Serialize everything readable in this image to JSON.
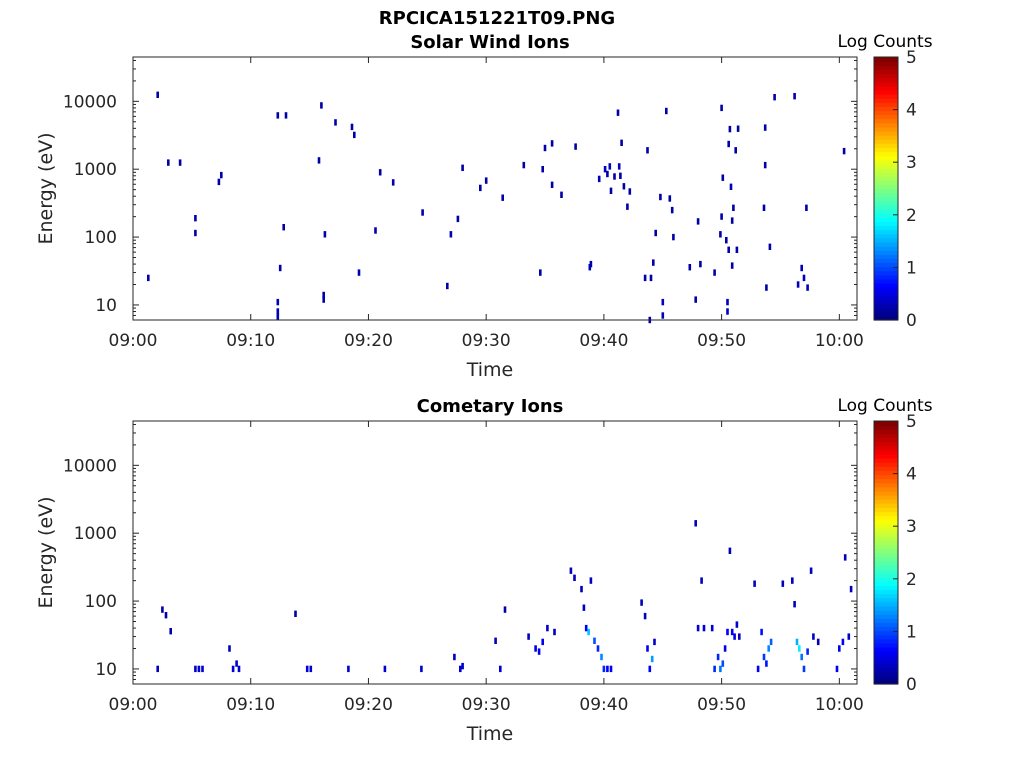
{
  "figure_title": "RPCICA151221T09.PNG",
  "chart_data": [
    {
      "type": "heatmap",
      "title": "Solar Wind Ions",
      "xlabel": "Time",
      "ylabel": "Energy (eV)",
      "x_ticks": [
        "09:00",
        "09:10",
        "09:20",
        "09:30",
        "09:40",
        "09:50",
        "10:00"
      ],
      "xlim": [
        "09:00",
        "10:01.5"
      ],
      "y_scale": "log",
      "y_ticks": [
        "10",
        "100",
        "1000",
        "10000"
      ],
      "ylim": [
        6,
        45000
      ],
      "colorbar": {
        "label": "Log Counts",
        "range": [
          0,
          5
        ],
        "ticks": [
          "0",
          "1",
          "2",
          "3",
          "4",
          "5"
        ],
        "colormap": "jet"
      },
      "points": [
        {
          "t": 1.3,
          "e": 25,
          "z": 0.2
        },
        {
          "t": 2.1,
          "e": 12500,
          "z": 0.2
        },
        {
          "t": 3.0,
          "e": 1250,
          "z": 0.2
        },
        {
          "t": 4.0,
          "e": 1250,
          "z": 0.2
        },
        {
          "t": 5.3,
          "e": 190,
          "z": 0.2
        },
        {
          "t": 5.3,
          "e": 115,
          "z": 0.2
        },
        {
          "t": 7.3,
          "e": 650,
          "z": 0.2
        },
        {
          "t": 7.5,
          "e": 820,
          "z": 0.2
        },
        {
          "t": 12.3,
          "e": 6200,
          "z": 0.2
        },
        {
          "t": 12.3,
          "e": 11,
          "z": 0.3
        },
        {
          "t": 12.3,
          "e": 8,
          "z": 0.3
        },
        {
          "t": 12.3,
          "e": 6.7,
          "z": 0.3
        },
        {
          "t": 12.5,
          "e": 35,
          "z": 0.2
        },
        {
          "t": 12.8,
          "e": 140,
          "z": 0.2
        },
        {
          "t": 13.0,
          "e": 6200,
          "z": 0.2
        },
        {
          "t": 15.8,
          "e": 1350,
          "z": 0.2
        },
        {
          "t": 16.0,
          "e": 8700,
          "z": 0.2
        },
        {
          "t": 16.2,
          "e": 14,
          "z": 0.2
        },
        {
          "t": 16.2,
          "e": 12,
          "z": 0.2
        },
        {
          "t": 16.3,
          "e": 110,
          "z": 0.2
        },
        {
          "t": 17.2,
          "e": 4900,
          "z": 0.2
        },
        {
          "t": 18.6,
          "e": 4200,
          "z": 0.2
        },
        {
          "t": 18.8,
          "e": 3200,
          "z": 0.2
        },
        {
          "t": 19.2,
          "e": 30,
          "z": 0.2
        },
        {
          "t": 20.6,
          "e": 125,
          "z": 0.2
        },
        {
          "t": 21.0,
          "e": 900,
          "z": 0.2
        },
        {
          "t": 22.1,
          "e": 640,
          "z": 0.2
        },
        {
          "t": 24.6,
          "e": 230,
          "z": 0.2
        },
        {
          "t": 26.7,
          "e": 19,
          "z": 0.2
        },
        {
          "t": 27.0,
          "e": 110,
          "z": 0.2
        },
        {
          "t": 27.6,
          "e": 185,
          "z": 0.2
        },
        {
          "t": 28.0,
          "e": 1050,
          "z": 0.2
        },
        {
          "t": 29.5,
          "e": 530,
          "z": 0.2
        },
        {
          "t": 30.0,
          "e": 680,
          "z": 0.2
        },
        {
          "t": 31.4,
          "e": 380,
          "z": 0.2
        },
        {
          "t": 33.2,
          "e": 1150,
          "z": 0.2
        },
        {
          "t": 34.6,
          "e": 30,
          "z": 0.2
        },
        {
          "t": 34.8,
          "e": 1000,
          "z": 0.2
        },
        {
          "t": 35.0,
          "e": 2050,
          "z": 0.2
        },
        {
          "t": 35.6,
          "e": 2400,
          "z": 0.2
        },
        {
          "t": 35.6,
          "e": 590,
          "z": 0.2
        },
        {
          "t": 36.4,
          "e": 420,
          "z": 0.2
        },
        {
          "t": 37.6,
          "e": 2150,
          "z": 0.2
        },
        {
          "t": 38.8,
          "e": 36,
          "z": 0.3
        },
        {
          "t": 38.9,
          "e": 40,
          "z": 0.2
        },
        {
          "t": 39.6,
          "e": 720,
          "z": 0.2
        },
        {
          "t": 40.1,
          "e": 1000,
          "z": 0.3
        },
        {
          "t": 40.3,
          "e": 850,
          "z": 0.2
        },
        {
          "t": 40.5,
          "e": 1100,
          "z": 0.3
        },
        {
          "t": 40.6,
          "e": 480,
          "z": 0.2
        },
        {
          "t": 40.9,
          "e": 780,
          "z": 0.2
        },
        {
          "t": 41.2,
          "e": 6800,
          "z": 0.2
        },
        {
          "t": 41.3,
          "e": 1100,
          "z": 0.3
        },
        {
          "t": 41.4,
          "e": 800,
          "z": 0.2
        },
        {
          "t": 41.5,
          "e": 2450,
          "z": 0.2
        },
        {
          "t": 41.7,
          "e": 560,
          "z": 0.2
        },
        {
          "t": 42.0,
          "e": 280,
          "z": 0.2
        },
        {
          "t": 42.2,
          "e": 470,
          "z": 0.2
        },
        {
          "t": 43.5,
          "e": 25,
          "z": 0.2
        },
        {
          "t": 43.7,
          "e": 1900,
          "z": 0.2
        },
        {
          "t": 43.9,
          "e": 6,
          "z": 0.2
        },
        {
          "t": 44.0,
          "e": 25,
          "z": 0.2
        },
        {
          "t": 44.2,
          "e": 42,
          "z": 0.2
        },
        {
          "t": 44.4,
          "e": 115,
          "z": 0.2
        },
        {
          "t": 44.8,
          "e": 390,
          "z": 0.2
        },
        {
          "t": 45.0,
          "e": 11,
          "z": 0.3
        },
        {
          "t": 45.0,
          "e": 7,
          "z": 0.3
        },
        {
          "t": 45.3,
          "e": 7200,
          "z": 0.2
        },
        {
          "t": 45.6,
          "e": 370,
          "z": 0.2
        },
        {
          "t": 45.8,
          "e": 250,
          "z": 0.2
        },
        {
          "t": 45.9,
          "e": 100,
          "z": 0.2
        },
        {
          "t": 47.3,
          "e": 36,
          "z": 0.2
        },
        {
          "t": 47.8,
          "e": 12,
          "z": 0.2
        },
        {
          "t": 48.0,
          "e": 170,
          "z": 0.2
        },
        {
          "t": 48.2,
          "e": 40,
          "z": 0.2
        },
        {
          "t": 49.4,
          "e": 30,
          "z": 0.2
        },
        {
          "t": 49.9,
          "e": 110,
          "z": 0.2
        },
        {
          "t": 50.0,
          "e": 8000,
          "z": 0.2
        },
        {
          "t": 50.0,
          "e": 200,
          "z": 0.2
        },
        {
          "t": 50.1,
          "e": 750,
          "z": 0.2
        },
        {
          "t": 50.4,
          "e": 90,
          "z": 0.2
        },
        {
          "t": 50.5,
          "e": 8,
          "z": 0.3
        },
        {
          "t": 50.5,
          "e": 11,
          "z": 0.3
        },
        {
          "t": 50.6,
          "e": 2350,
          "z": 0.2
        },
        {
          "t": 50.6,
          "e": 65,
          "z": 0.2
        },
        {
          "t": 50.7,
          "e": 3900,
          "z": 0.2
        },
        {
          "t": 50.8,
          "e": 550,
          "z": 0.3
        },
        {
          "t": 50.9,
          "e": 38,
          "z": 0.2
        },
        {
          "t": 50.9,
          "e": 175,
          "z": 0.2
        },
        {
          "t": 51.0,
          "e": 270,
          "z": 0.2
        },
        {
          "t": 51.2,
          "e": 1900,
          "z": 0.2
        },
        {
          "t": 51.3,
          "e": 65,
          "z": 0.2
        },
        {
          "t": 51.4,
          "e": 3950,
          "z": 0.2
        },
        {
          "t": 53.6,
          "e": 270,
          "z": 0.2
        },
        {
          "t": 53.7,
          "e": 4100,
          "z": 0.2
        },
        {
          "t": 53.7,
          "e": 1150,
          "z": 0.2
        },
        {
          "t": 53.8,
          "e": 18,
          "z": 0.2
        },
        {
          "t": 54.1,
          "e": 72,
          "z": 0.2
        },
        {
          "t": 54.5,
          "e": 11500,
          "z": 0.2
        },
        {
          "t": 56.2,
          "e": 11900,
          "z": 0.2
        },
        {
          "t": 56.5,
          "e": 20,
          "z": 0.3
        },
        {
          "t": 56.8,
          "e": 35,
          "z": 0.3
        },
        {
          "t": 57.0,
          "e": 25,
          "z": 0.3
        },
        {
          "t": 57.2,
          "e": 270,
          "z": 0.2
        },
        {
          "t": 57.3,
          "e": 18,
          "z": 0.3
        },
        {
          "t": 60.4,
          "e": 1850,
          "z": 0.2
        }
      ]
    },
    {
      "type": "heatmap",
      "title": "Cometary Ions",
      "xlabel": "Time",
      "ylabel": "Energy (eV)",
      "x_ticks": [
        "09:00",
        "09:10",
        "09:20",
        "09:30",
        "09:40",
        "09:50",
        "10:00"
      ],
      "xlim": [
        "09:00",
        "10:01.5"
      ],
      "y_scale": "log",
      "y_ticks": [
        "10",
        "100",
        "1000",
        "10000"
      ],
      "ylim": [
        6,
        45000
      ],
      "colorbar": {
        "label": "Log Counts",
        "range": [
          0,
          5
        ],
        "ticks": [
          "0",
          "1",
          "2",
          "3",
          "4",
          "5"
        ],
        "colormap": "jet"
      },
      "points": [
        {
          "t": 2.1,
          "e": 10,
          "z": 0.3
        },
        {
          "t": 2.5,
          "e": 75,
          "z": 0.2
        },
        {
          "t": 2.8,
          "e": 62,
          "z": 0.2
        },
        {
          "t": 3.2,
          "e": 36,
          "z": 0.2
        },
        {
          "t": 5.3,
          "e": 10,
          "z": 0.4
        },
        {
          "t": 5.6,
          "e": 10,
          "z": 0.4
        },
        {
          "t": 5.9,
          "e": 10,
          "z": 0.4
        },
        {
          "t": 8.2,
          "e": 20,
          "z": 0.3
        },
        {
          "t": 8.5,
          "e": 10,
          "z": 0.4
        },
        {
          "t": 8.8,
          "e": 12,
          "z": 0.4
        },
        {
          "t": 9.0,
          "e": 10,
          "z": 0.4
        },
        {
          "t": 13.8,
          "e": 65,
          "z": 0.2
        },
        {
          "t": 14.8,
          "e": 10,
          "z": 0.4
        },
        {
          "t": 15.1,
          "e": 10,
          "z": 0.4
        },
        {
          "t": 18.3,
          "e": 10,
          "z": 0.4
        },
        {
          "t": 21.4,
          "e": 10,
          "z": 0.4
        },
        {
          "t": 24.5,
          "e": 10,
          "z": 0.4
        },
        {
          "t": 27.3,
          "e": 15,
          "z": 0.3
        },
        {
          "t": 27.8,
          "e": 10,
          "z": 0.4
        },
        {
          "t": 28.0,
          "e": 11,
          "z": 0.4
        },
        {
          "t": 30.8,
          "e": 26,
          "z": 0.3
        },
        {
          "t": 31.2,
          "e": 10,
          "z": 0.4
        },
        {
          "t": 31.6,
          "e": 75,
          "z": 0.2
        },
        {
          "t": 33.6,
          "e": 30,
          "z": 0.3
        },
        {
          "t": 34.2,
          "e": 20,
          "z": 0.5
        },
        {
          "t": 34.5,
          "e": 18,
          "z": 0.6
        },
        {
          "t": 34.8,
          "e": 25,
          "z": 0.6
        },
        {
          "t": 35.2,
          "e": 40,
          "z": 0.4
        },
        {
          "t": 35.8,
          "e": 35,
          "z": 0.3
        },
        {
          "t": 37.2,
          "e": 280,
          "z": 0.3
        },
        {
          "t": 37.5,
          "e": 220,
          "z": 0.3
        },
        {
          "t": 38.1,
          "e": 150,
          "z": 0.3
        },
        {
          "t": 38.3,
          "e": 80,
          "z": 0.3
        },
        {
          "t": 38.5,
          "e": 40,
          "z": 0.6
        },
        {
          "t": 38.7,
          "e": 35,
          "z": 1.6
        },
        {
          "t": 38.9,
          "e": 200,
          "z": 0.3
        },
        {
          "t": 39.2,
          "e": 26,
          "z": 1.0
        },
        {
          "t": 39.5,
          "e": 20,
          "z": 0.8
        },
        {
          "t": 39.8,
          "e": 15,
          "z": 1.3
        },
        {
          "t": 40.0,
          "e": 10,
          "z": 0.8
        },
        {
          "t": 40.3,
          "e": 10,
          "z": 0.6
        },
        {
          "t": 40.6,
          "e": 10,
          "z": 0.6
        },
        {
          "t": 43.2,
          "e": 95,
          "z": 0.3
        },
        {
          "t": 43.5,
          "e": 60,
          "z": 0.3
        },
        {
          "t": 43.7,
          "e": 20,
          "z": 0.6
        },
        {
          "t": 43.9,
          "e": 10,
          "z": 0.6
        },
        {
          "t": 44.1,
          "e": 14,
          "z": 1.4
        },
        {
          "t": 44.3,
          "e": 25,
          "z": 0.4
        },
        {
          "t": 47.8,
          "e": 1400,
          "z": 0.3
        },
        {
          "t": 48.0,
          "e": 40,
          "z": 0.4
        },
        {
          "t": 48.3,
          "e": 200,
          "z": 0.3
        },
        {
          "t": 48.5,
          "e": 40,
          "z": 0.4
        },
        {
          "t": 49.2,
          "e": 40,
          "z": 0.4
        },
        {
          "t": 49.4,
          "e": 10,
          "z": 0.8
        },
        {
          "t": 49.7,
          "e": 15,
          "z": 0.8
        },
        {
          "t": 49.9,
          "e": 10,
          "z": 1.2
        },
        {
          "t": 50.1,
          "e": 12,
          "z": 1.0
        },
        {
          "t": 50.3,
          "e": 20,
          "z": 0.5
        },
        {
          "t": 50.5,
          "e": 35,
          "z": 0.6
        },
        {
          "t": 50.7,
          "e": 550,
          "z": 0.3
        },
        {
          "t": 50.9,
          "e": 35,
          "z": 0.6
        },
        {
          "t": 51.1,
          "e": 30,
          "z": 0.5
        },
        {
          "t": 51.3,
          "e": 45,
          "z": 0.4
        },
        {
          "t": 51.5,
          "e": 30,
          "z": 0.3
        },
        {
          "t": 52.8,
          "e": 180,
          "z": 0.3
        },
        {
          "t": 53.1,
          "e": 10,
          "z": 0.6
        },
        {
          "t": 53.4,
          "e": 35,
          "z": 0.7
        },
        {
          "t": 53.6,
          "e": 15,
          "z": 0.9
        },
        {
          "t": 53.8,
          "e": 12,
          "z": 0.7
        },
        {
          "t": 54.0,
          "e": 20,
          "z": 1.3
        },
        {
          "t": 54.2,
          "e": 25,
          "z": 1.1
        },
        {
          "t": 55.2,
          "e": 180,
          "z": 0.3
        },
        {
          "t": 56.0,
          "e": 200,
          "z": 0.3
        },
        {
          "t": 56.2,
          "e": 90,
          "z": 0.3
        },
        {
          "t": 56.4,
          "e": 25,
          "z": 1.5
        },
        {
          "t": 56.6,
          "e": 20,
          "z": 1.8
        },
        {
          "t": 56.8,
          "e": 15,
          "z": 1.2
        },
        {
          "t": 57.0,
          "e": 10,
          "z": 0.9
        },
        {
          "t": 57.3,
          "e": 18,
          "z": 0.8
        },
        {
          "t": 57.6,
          "e": 280,
          "z": 0.3
        },
        {
          "t": 57.8,
          "e": 30,
          "z": 0.4
        },
        {
          "t": 58.2,
          "e": 25,
          "z": 0.3
        },
        {
          "t": 59.8,
          "e": 10,
          "z": 0.6
        },
        {
          "t": 60.0,
          "e": 20,
          "z": 0.5
        },
        {
          "t": 60.3,
          "e": 25,
          "z": 0.6
        },
        {
          "t": 60.5,
          "e": 440,
          "z": 0.3
        },
        {
          "t": 60.8,
          "e": 30,
          "z": 0.4
        },
        {
          "t": 61.0,
          "e": 150,
          "z": 0.3
        }
      ]
    }
  ]
}
